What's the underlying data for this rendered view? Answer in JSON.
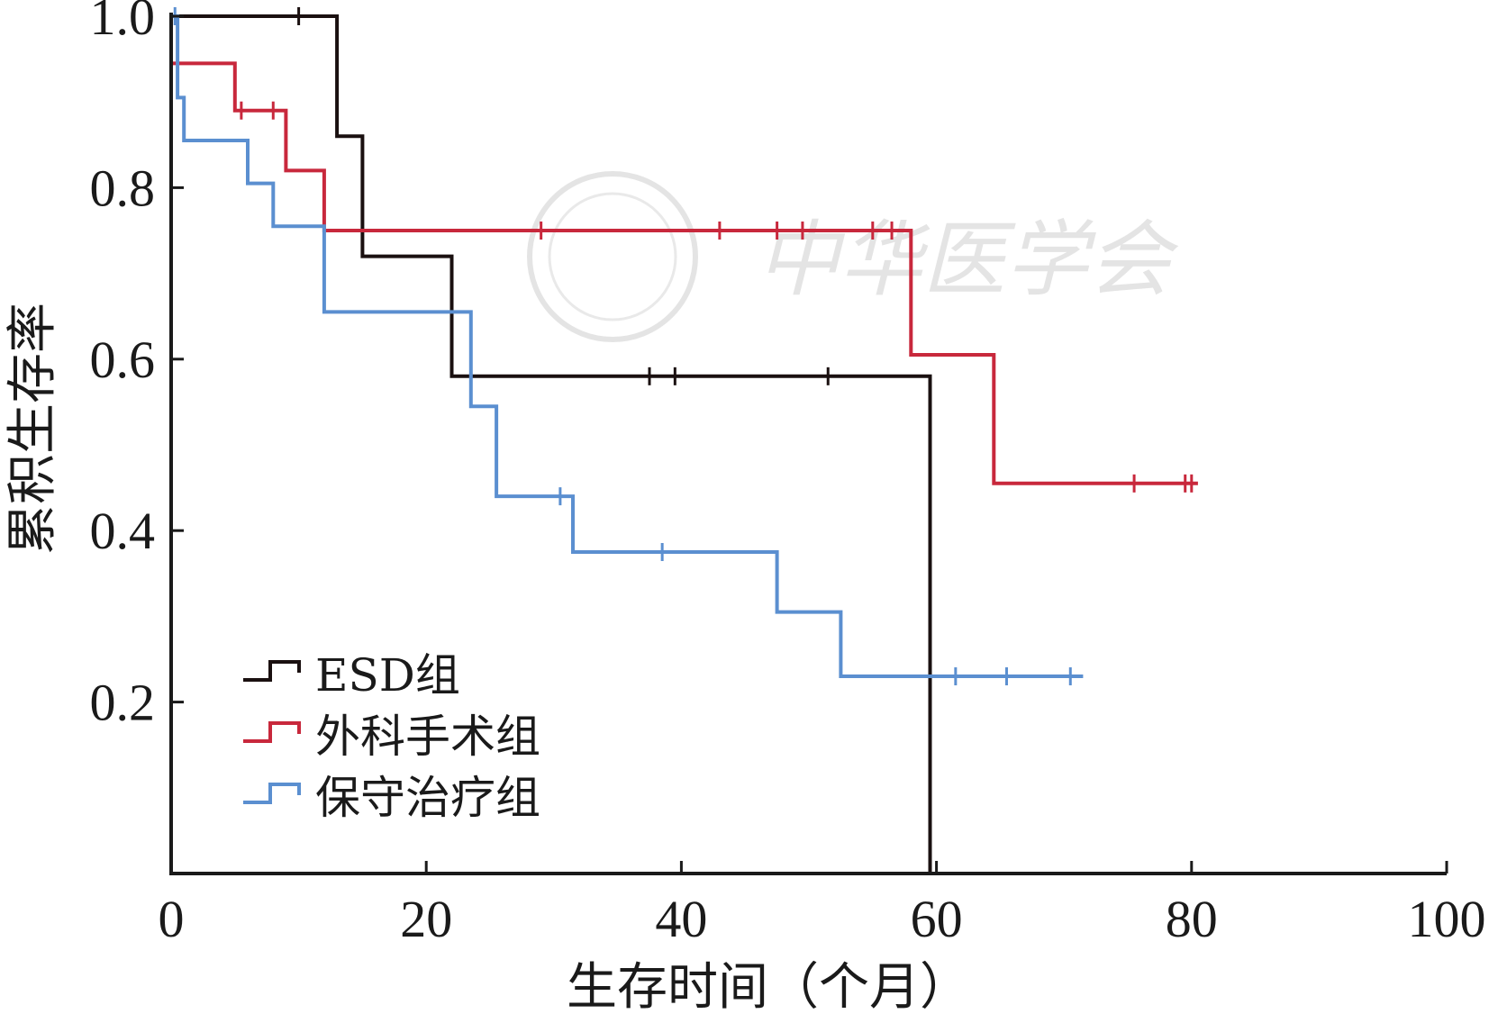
{
  "chart_data": {
    "type": "line",
    "step": true,
    "xlabel": "生存时间（个月）",
    "ylabel": "累积生存率",
    "xlim": [
      0,
      100
    ],
    "ylim": [
      0,
      1.0
    ],
    "xticks": [
      0,
      20,
      40,
      60,
      80,
      100
    ],
    "yticks": [
      0.2,
      0.4,
      0.6,
      0.8,
      1.0
    ],
    "x_tick_labels": [
      "0",
      "20",
      "40",
      "60",
      "80",
      "100"
    ],
    "y_tick_labels": [
      "0.2",
      "0.4",
      "0.6",
      "0.8",
      "1.0"
    ],
    "legend_position": "bottom-left",
    "grid": false,
    "watermark": "中华医学会",
    "series": [
      {
        "name": "ESD组",
        "color": "#1a1010",
        "points": [
          [
            0,
            1.0
          ],
          [
            13,
            1.0
          ],
          [
            13,
            0.86
          ],
          [
            15,
            0.86
          ],
          [
            15,
            0.72
          ],
          [
            22,
            0.72
          ],
          [
            22,
            0.58
          ],
          [
            59.5,
            0.58
          ],
          [
            59.5,
            0.0
          ]
        ],
        "censored": [
          [
            10,
            1.0
          ],
          [
            37.5,
            0.58
          ],
          [
            39.5,
            0.58
          ],
          [
            51.5,
            0.58
          ]
        ]
      },
      {
        "name": "外科手术组",
        "color": "#c8283c",
        "points": [
          [
            0,
            0.945
          ],
          [
            5,
            0.945
          ],
          [
            5,
            0.89
          ],
          [
            9,
            0.89
          ],
          [
            9,
            0.82
          ],
          [
            12,
            0.82
          ],
          [
            12,
            0.75
          ],
          [
            58,
            0.75
          ],
          [
            58,
            0.605
          ],
          [
            64.5,
            0.605
          ],
          [
            64.5,
            0.455
          ],
          [
            80.5,
            0.455
          ]
        ],
        "censored": [
          [
            5.5,
            0.89
          ],
          [
            8,
            0.89
          ],
          [
            29,
            0.75
          ],
          [
            43,
            0.75
          ],
          [
            47.5,
            0.75
          ],
          [
            49.5,
            0.75
          ],
          [
            55,
            0.75
          ],
          [
            56.5,
            0.75
          ],
          [
            75.5,
            0.455
          ],
          [
            79.5,
            0.455
          ],
          [
            80,
            0.455
          ]
        ]
      },
      {
        "name": "保守治疗组",
        "color": "#5b8fd0",
        "points": [
          [
            0,
            1.0
          ],
          [
            0.5,
            1.0
          ],
          [
            0.5,
            0.905
          ],
          [
            1,
            0.905
          ],
          [
            1,
            0.855
          ],
          [
            6,
            0.855
          ],
          [
            6,
            0.805
          ],
          [
            8,
            0.805
          ],
          [
            8,
            0.755
          ],
          [
            12,
            0.755
          ],
          [
            12,
            0.655
          ],
          [
            23.5,
            0.655
          ],
          [
            23.5,
            0.545
          ],
          [
            25.5,
            0.545
          ],
          [
            25.5,
            0.44
          ],
          [
            31.5,
            0.44
          ],
          [
            31.5,
            0.375
          ],
          [
            47.5,
            0.375
          ],
          [
            47.5,
            0.305
          ],
          [
            52.5,
            0.305
          ],
          [
            52.5,
            0.23
          ],
          [
            71.5,
            0.23
          ]
        ],
        "censored": [
          [
            0.3,
            1.0
          ],
          [
            30.5,
            0.44
          ],
          [
            38.5,
            0.375
          ],
          [
            61.5,
            0.23
          ],
          [
            65.5,
            0.23
          ],
          [
            70.5,
            0.23
          ]
        ]
      }
    ]
  }
}
